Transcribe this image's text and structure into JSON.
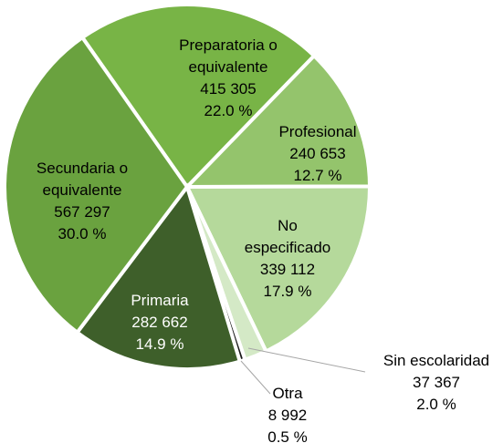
{
  "chart_data": {
    "type": "pie",
    "categories": [
      "Preparatoria o equivalente",
      "Profesional",
      "No especificado",
      "Sin escolaridad",
      "Otra",
      "Primaria",
      "Secundaria  o equivalente"
    ],
    "values": [
      415305,
      240653,
      339112,
      37367,
      8992,
      282662,
      567297
    ],
    "value_labels": [
      "415 305",
      "240 653",
      "339 112",
      "37 367",
      "8 992",
      "282 662",
      "567 297"
    ],
    "percent_labels": [
      "22.0 %",
      "12.7 %",
      "17.9 %",
      "2.0 %",
      "0.5 %",
      "14.9 %",
      "30.0 %"
    ],
    "colors": [
      "#78b446",
      "#94c46c",
      "#b5d99b",
      "#d4e9c6",
      "#1a1a1a",
      "#3e5f2a",
      "#6aa23f"
    ]
  }
}
